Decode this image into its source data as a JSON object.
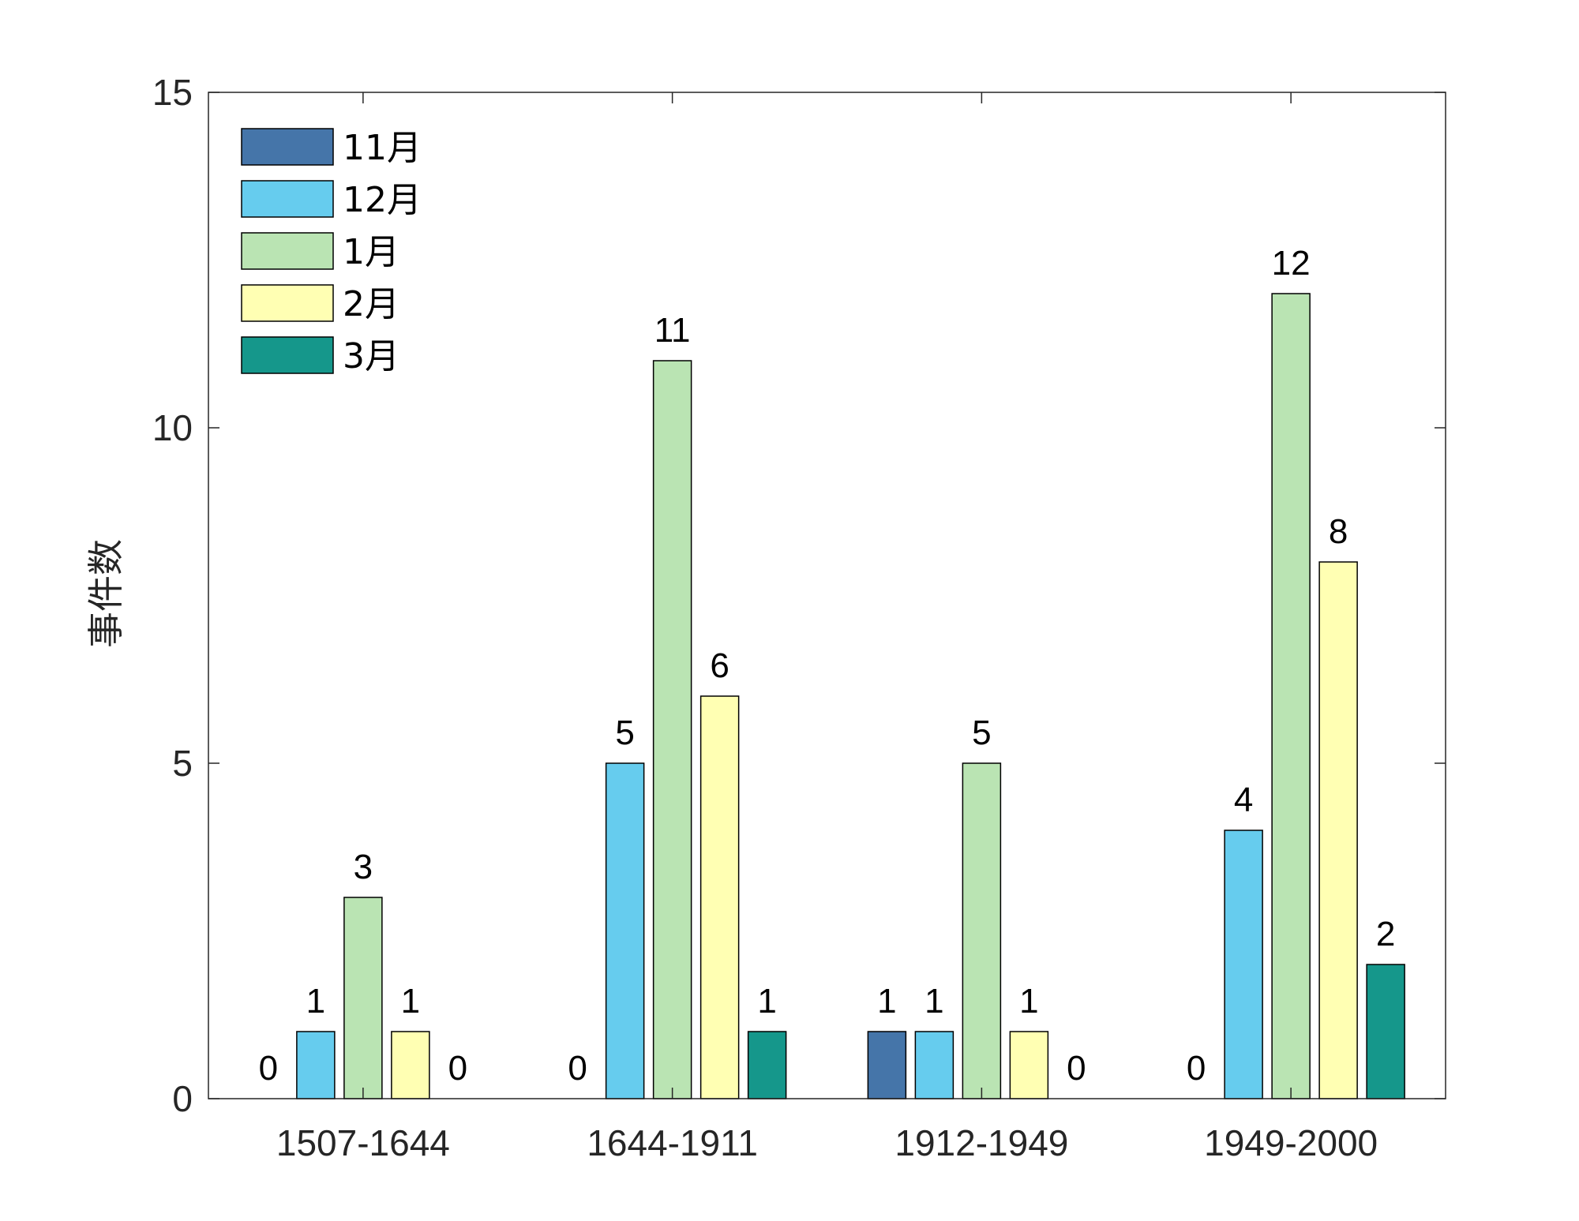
{
  "chart_data": {
    "type": "bar",
    "title": "",
    "xlabel": "",
    "ylabel": "事件数",
    "ylim": [
      0,
      15
    ],
    "yticks": [
      0,
      5,
      10,
      15
    ],
    "grid": false,
    "legend_position": "top-left",
    "categories": [
      "1507-1644",
      "1644-1911",
      "1912-1949",
      "1949-2000"
    ],
    "series": [
      {
        "name": "11月",
        "color": "#4575a9",
        "values": [
          0,
          0,
          1,
          0
        ]
      },
      {
        "name": "12月",
        "color": "#66ccee",
        "values": [
          1,
          5,
          1,
          4
        ]
      },
      {
        "name": "1月",
        "color": "#bae4b3",
        "values": [
          3,
          11,
          5,
          12
        ]
      },
      {
        "name": "2月",
        "color": "#ffffb3",
        "values": [
          1,
          6,
          1,
          8
        ]
      },
      {
        "name": "3月",
        "color": "#15978b",
        "values": [
          0,
          1,
          0,
          2
        ]
      }
    ]
  }
}
